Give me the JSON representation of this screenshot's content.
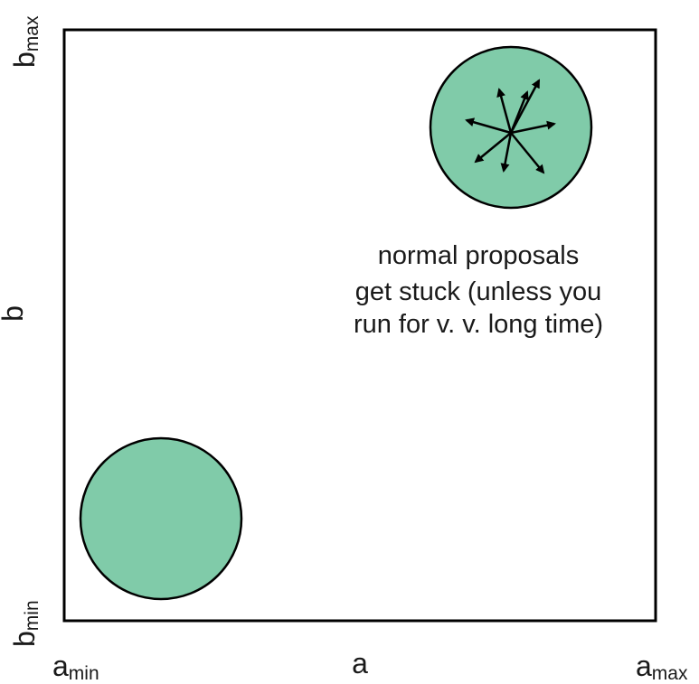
{
  "axes": {
    "x": {
      "label": "a",
      "min_label": {
        "base": "a",
        "sub": "min"
      },
      "max_label": {
        "base": "a",
        "sub": "max"
      }
    },
    "y": {
      "label": "b",
      "min_label": {
        "base": "b",
        "sub": "min"
      },
      "max_label": {
        "base": "b",
        "sub": "max"
      }
    }
  },
  "regions": [
    {
      "id": "mode-bottom-left",
      "fill": "#80cba9",
      "stroke": "#000000"
    },
    {
      "id": "mode-top-right",
      "fill": "#80cba9",
      "stroke": "#000000"
    }
  ],
  "proposal_arrows": {
    "count": 8,
    "color": "#000000"
  },
  "annotation": {
    "lines": [
      "normal proposals",
      "get stuck (unless you",
      "run for v. v. long time)"
    ]
  }
}
